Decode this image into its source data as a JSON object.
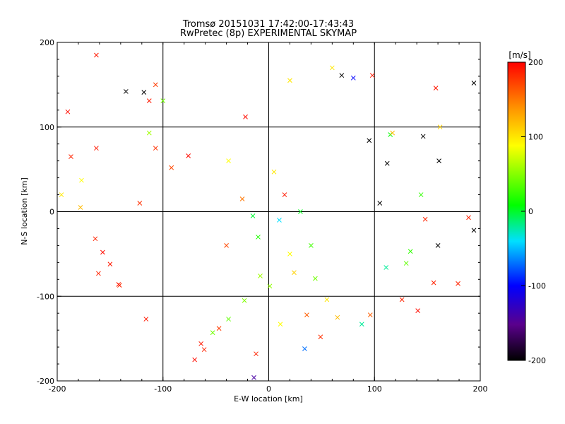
{
  "chart_data": {
    "type": "scatter",
    "title": "Tromsø 20151031 17:42:00-17:43:43",
    "subtitle": "RwPretec (8p) EXPERIMENTAL SKYMAP",
    "xlabel": "E-W location [km]",
    "ylabel": "N-S location [km]",
    "xlim": [
      -200,
      200
    ],
    "ylim": [
      -200,
      200
    ],
    "xticks": [
      "-200",
      "-100",
      "0",
      "100",
      "200"
    ],
    "yticks": [
      "-200",
      "-100",
      "0",
      "100",
      "200"
    ],
    "grid": true,
    "colorbar": {
      "label": "[m/s]",
      "min": -200,
      "max": 200,
      "ticks": [
        "-200",
        "-100",
        "0",
        "100",
        "200"
      ],
      "colormap": "black-purple-blue-cyan-green-yellow-orange-red"
    },
    "markers": [
      "dot",
      "x"
    ],
    "series": [
      {
        "marker": "x",
        "points": [
          [
            -163,
            185,
            190
          ],
          [
            -190,
            118,
            195
          ],
          [
            -187,
            65,
            185
          ],
          [
            -177,
            37,
            90
          ],
          [
            -196,
            20,
            100
          ],
          [
            -178,
            5,
            120
          ],
          [
            -163,
            75,
            190
          ],
          [
            -164,
            -32,
            185
          ],
          [
            -157,
            -48,
            195
          ],
          [
            -150,
            -62,
            190
          ],
          [
            -141,
            -87,
            180
          ],
          [
            -161,
            -73,
            185
          ],
          [
            -116,
            -127,
            190
          ],
          [
            -113,
            131,
            190
          ],
          [
            -107,
            75,
            180
          ],
          [
            -92,
            52,
            170
          ],
          [
            -76,
            66,
            195
          ],
          [
            -64,
            -156,
            190
          ],
          [
            -61,
            -163,
            185
          ],
          [
            -70,
            -175,
            195
          ],
          [
            -53,
            -143,
            45
          ],
          [
            -47,
            -138,
            175
          ],
          [
            -38,
            -127,
            40
          ],
          [
            -12,
            -168,
            185
          ],
          [
            -14,
            -196,
            -140
          ],
          [
            -23,
            -105,
            50
          ],
          [
            -8,
            -76,
            60
          ],
          [
            1,
            -88,
            55
          ],
          [
            24,
            -72,
            110
          ],
          [
            11,
            -133,
            90
          ],
          [
            34,
            -162,
            -70
          ],
          [
            36,
            -122,
            160
          ],
          [
            49,
            -148,
            180
          ],
          [
            55,
            -104,
            100
          ],
          [
            65,
            -125,
            120
          ],
          [
            88,
            -133,
            -20
          ],
          [
            98,
            161,
            190
          ],
          [
            95,
            84,
            -200
          ],
          [
            105,
            10,
            -200
          ],
          [
            111,
            -66,
            -20
          ],
          [
            126,
            -104,
            185
          ],
          [
            141,
            -117,
            195
          ],
          [
            158,
            146,
            190
          ],
          [
            162,
            100,
            110
          ],
          [
            160,
            -40,
            -200
          ],
          [
            156,
            -84,
            185
          ],
          [
            179,
            -85,
            185
          ],
          [
            189,
            -7,
            185
          ],
          [
            194,
            -22,
            -200
          ],
          [
            194,
            152,
            -200
          ],
          [
            161,
            60,
            -200
          ],
          [
            146,
            89,
            -200
          ],
          [
            148,
            -9,
            185
          ],
          [
            130,
            -61,
            40
          ],
          [
            134,
            -47,
            25
          ],
          [
            144,
            20,
            25
          ],
          [
            112,
            57,
            -200
          ],
          [
            69,
            161,
            -200
          ],
          [
            44,
            -79,
            45
          ],
          [
            96,
            -122,
            160
          ],
          [
            -100,
            131,
            45
          ],
          [
            -107,
            150,
            175
          ],
          [
            -122,
            10,
            180
          ],
          [
            -135,
            142,
            -200
          ],
          [
            -118,
            141,
            -200
          ],
          [
            -142,
            -86,
            190
          ],
          [
            -113,
            93,
            60
          ],
          [
            -38,
            60,
            90
          ],
          [
            -22,
            112,
            195
          ],
          [
            20,
            155,
            100
          ],
          [
            60,
            170,
            100
          ],
          [
            80,
            158,
            -100
          ],
          [
            115,
            91,
            10
          ],
          [
            117,
            93,
            120
          ],
          [
            20,
            -50,
            90
          ],
          [
            -10,
            -30,
            20
          ],
          [
            30,
            0,
            5
          ],
          [
            -25,
            15,
            150
          ],
          [
            5,
            47,
            100
          ],
          [
            -15,
            -5,
            0
          ],
          [
            15,
            20,
            190
          ],
          [
            -40,
            -40,
            170
          ],
          [
            10,
            -10,
            -40
          ],
          [
            40,
            -40,
            30
          ]
        ]
      }
    ]
  }
}
